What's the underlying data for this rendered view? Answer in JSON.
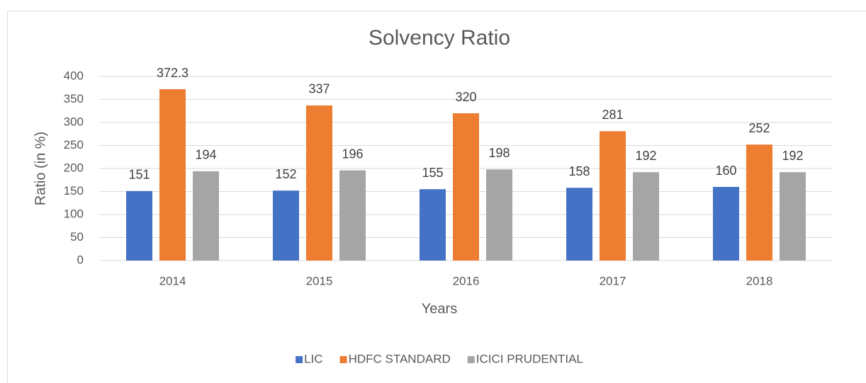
{
  "chart_data": {
    "type": "bar",
    "title": "Solvency Ratio",
    "x_label": "Years",
    "y_label": "Ratio (in %)",
    "categories": [
      "2014",
      "2015",
      "2016",
      "2017",
      "2018"
    ],
    "series": [
      {
        "name": "LIC",
        "color": "#4472c4",
        "values": [
          151,
          152,
          155,
          158,
          160
        ]
      },
      {
        "name": "HDFC STANDARD",
        "color": "#ed7d31",
        "values": [
          372.3,
          337,
          320,
          281,
          252
        ]
      },
      {
        "name": "ICICI PRUDENTIAL",
        "color": "#a5a5a5",
        "values": [
          194,
          196,
          198,
          192,
          192
        ]
      }
    ],
    "ylim": [
      0,
      400
    ],
    "yticks": [
      0,
      50,
      100,
      150,
      200,
      250,
      300,
      350,
      400
    ],
    "grid": true,
    "legend": "bottom"
  }
}
